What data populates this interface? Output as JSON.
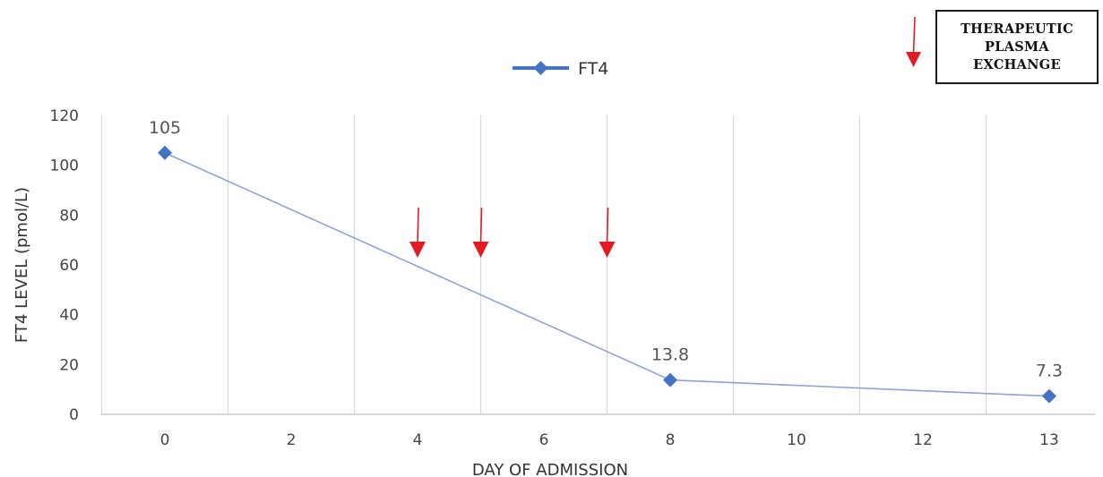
{
  "chart_data": {
    "type": "line",
    "xlabel": "DAY OF ADMISSION",
    "ylabel": "FT4 LEVEL (pmol/L)",
    "ylim": [
      0,
      120
    ],
    "yticks": [
      0,
      20,
      40,
      60,
      80,
      100,
      120
    ],
    "categories": [
      "0",
      "2",
      "4",
      "6",
      "8",
      "10",
      "12",
      "13"
    ],
    "grid": "vertical",
    "legend": {
      "position": "top-center",
      "entries": [
        "FT4"
      ]
    },
    "series": [
      {
        "name": "FT4",
        "color": "#4472c4",
        "marker": "diamond",
        "points": [
          {
            "x": 0,
            "y": 105,
            "label": "105"
          },
          {
            "x": 8,
            "y": 13.8,
            "label": "13.8"
          },
          {
            "x": 13,
            "y": 7.3,
            "label": "7.3"
          }
        ]
      }
    ],
    "annotations": {
      "arrow_color": "#e31b23",
      "arrow_days": [
        4,
        5,
        7
      ],
      "legend_note": [
        "THERAPEUTIC",
        "PLASMA",
        "EXCHANGE"
      ]
    }
  }
}
